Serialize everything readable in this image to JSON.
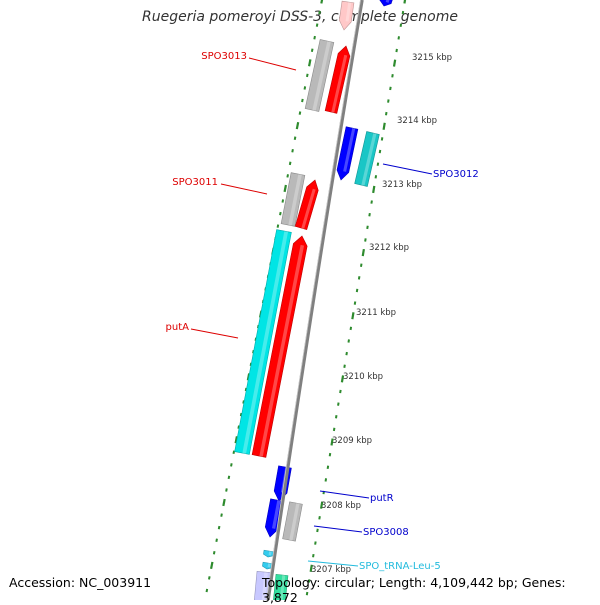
{
  "title": "Ruegeria pomeroyi DSS-3, complete genome",
  "accession": "Accession: NC_003911",
  "summary": "Topology: circular; Length: 4,109,442 bp; Genes: 3,872",
  "colors": {
    "backbone": "#808080",
    "tick": "#2e8b2e",
    "forward_cds": "#ff0000",
    "forward_other": "#00e5e5",
    "reverse_cds": "#0000ff",
    "reverse_other": "#1ac6c6",
    "neutral": "#b9b9b9",
    "trna": "#33ccee",
    "label_red": "#dd0000",
    "label_blue": "#0000cc",
    "label_cyan": "#22bbdd"
  },
  "scale_labels": [
    "3215 kbp",
    "3214 kbp",
    "3213 kbp",
    "3212 kbp",
    "3211 kbp",
    "3210 kbp",
    "3209 kbp",
    "3208 kbp",
    "3207 kbp"
  ],
  "feature_labels": [
    "SPO3013",
    "SPO3012",
    "SPO3011",
    "putA",
    "putR",
    "SPO3008",
    "SPO_tRNA-Leu-5"
  ]
}
